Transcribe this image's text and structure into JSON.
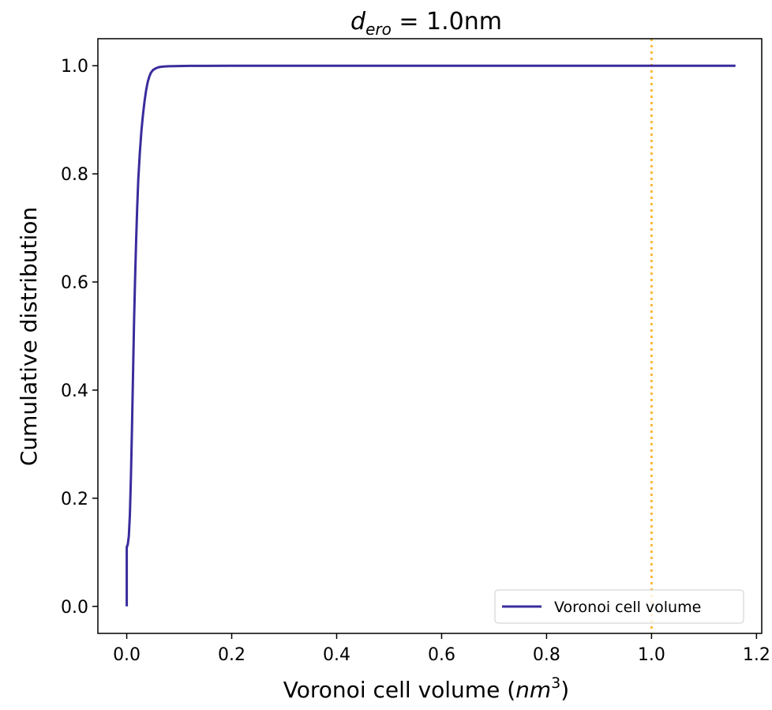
{
  "chart_data": {
    "type": "line",
    "title": {
      "var": "d",
      "subscript": "ero",
      "rest": " = 1.0nm"
    },
    "xlabel": {
      "prefix": "Voronoi cell volume (",
      "unit": "nm",
      "exponent": "3",
      "suffix": ")"
    },
    "ylabel": "Cumulative distribution",
    "xlim": [
      -0.055,
      1.21
    ],
    "ylim": [
      -0.05,
      1.05
    ],
    "xticks": [
      0.0,
      0.2,
      0.4,
      0.6,
      0.8,
      1.0,
      1.2
    ],
    "xtick_labels": [
      "0.0",
      "0.2",
      "0.4",
      "0.6",
      "0.8",
      "1.0",
      "1.2"
    ],
    "yticks": [
      0.0,
      0.2,
      0.4,
      0.6,
      0.8,
      1.0
    ],
    "ytick_labels": [
      "0.0",
      "0.2",
      "0.4",
      "0.6",
      "0.8",
      "1.0"
    ],
    "grid": false,
    "legend_position": "lower-right",
    "series": [
      {
        "name": "Voronoi cell volume",
        "color": "#3a2c9c",
        "x": [
          0.0,
          0.0,
          0.0005,
          0.002,
          0.004,
          0.006,
          0.008,
          0.01,
          0.012,
          0.014,
          0.016,
          0.018,
          0.02,
          0.022,
          0.025,
          0.028,
          0.031,
          0.034,
          0.037,
          0.04,
          0.043,
          0.046,
          0.05,
          0.055,
          0.06,
          0.065,
          0.07,
          0.08,
          0.09,
          0.1,
          0.12,
          0.15,
          0.2,
          0.3,
          0.5,
          0.7,
          0.9,
          1.0,
          1.16
        ],
        "y": [
          0.0,
          0.11,
          0.11,
          0.115,
          0.13,
          0.17,
          0.24,
          0.33,
          0.43,
          0.53,
          0.61,
          0.68,
          0.74,
          0.79,
          0.84,
          0.88,
          0.91,
          0.935,
          0.955,
          0.97,
          0.98,
          0.987,
          0.992,
          0.995,
          0.997,
          0.998,
          0.9985,
          0.999,
          0.9993,
          0.9995,
          0.9997,
          0.9998,
          0.9999,
          1.0,
          1.0,
          1.0,
          1.0,
          1.0,
          1.0
        ]
      }
    ],
    "vlines": [
      {
        "x": 1.0,
        "color": "#f9b93a",
        "style": "dotted"
      }
    ]
  }
}
